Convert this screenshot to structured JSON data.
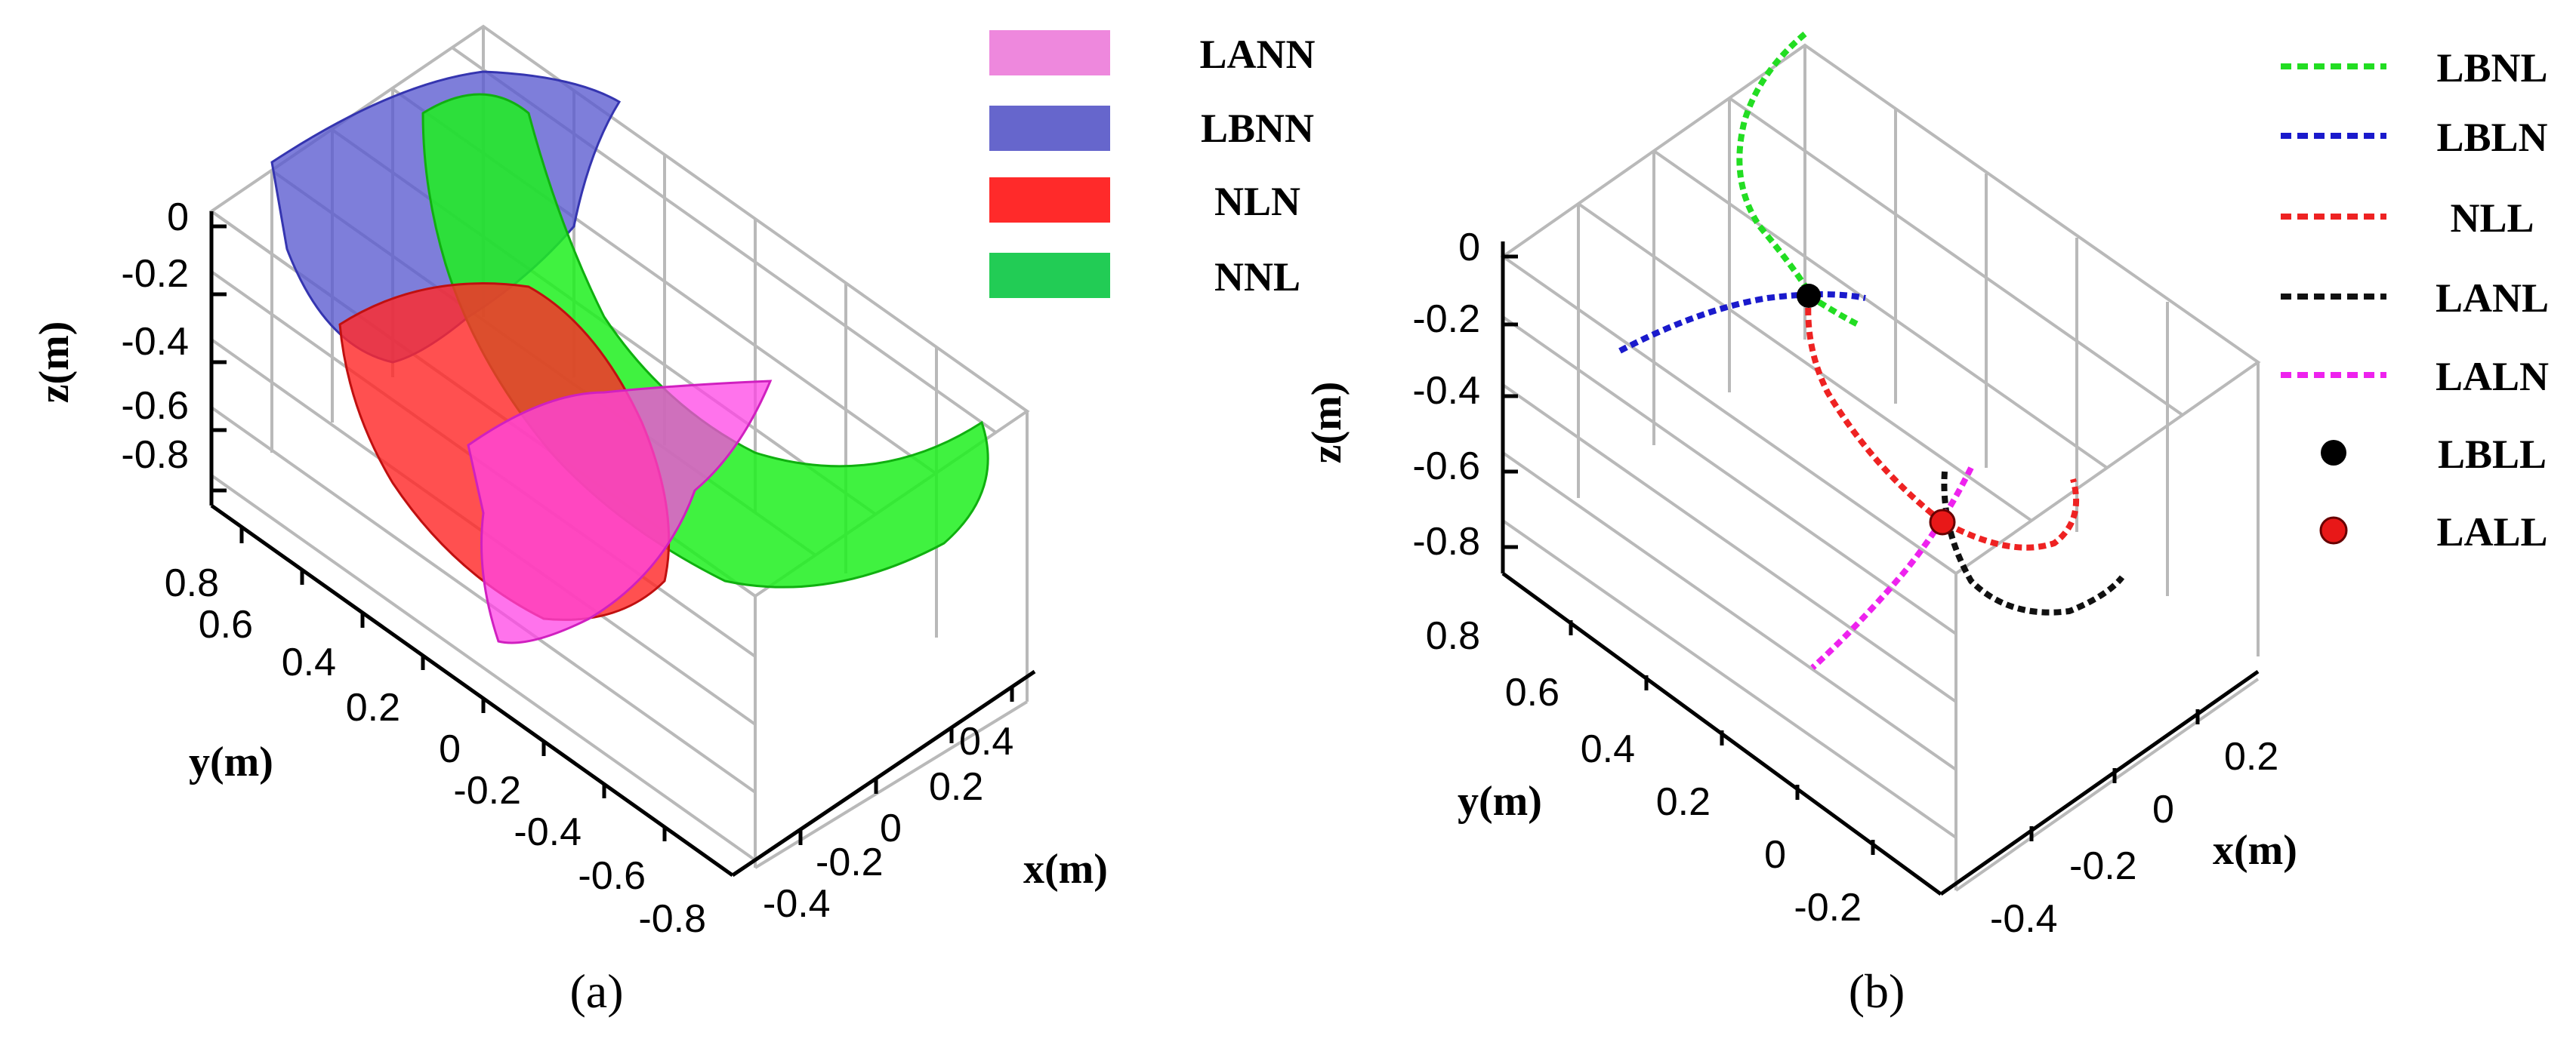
{
  "chart_data": [
    {
      "panel": "a",
      "type": "surface3d",
      "caption": "(a)",
      "xlabel": "x(m)",
      "ylabel": "y(m)",
      "zlabel": "z(m)",
      "xticks": [
        "0.4",
        "0.2",
        "0",
        "-0.2",
        "-0.4"
      ],
      "yticks": [
        "0.8",
        "0.6",
        "0.4",
        "0.2",
        "0",
        "-0.2",
        "-0.4",
        "-0.6",
        "-0.8"
      ],
      "zticks": [
        "0",
        "-0.2",
        "-0.4",
        "-0.6",
        "-0.8"
      ],
      "legend_position": "top-right",
      "legend": [
        {
          "label": "LANN",
          "color": "#ee88dd"
        },
        {
          "label": "LBNN",
          "color": "#6666cc"
        },
        {
          "label": "NLN",
          "color": "#ff2a2a"
        },
        {
          "label": "NNL",
          "color": "#22cc55"
        }
      ]
    },
    {
      "panel": "b",
      "type": "line3d",
      "caption": "(b)",
      "xlabel": "x(m)",
      "ylabel": "y(m)",
      "zlabel": "z(m)",
      "xticks": [
        "0.2",
        "0",
        "-0.2",
        "-0.4"
      ],
      "yticks": [
        "0.8",
        "0.6",
        "0.4",
        "0.2",
        "0",
        "-0.2"
      ],
      "zticks": [
        "0",
        "-0.2",
        "-0.4",
        "-0.6",
        "-0.8"
      ],
      "legend_position": "top-right",
      "legend": [
        {
          "label": "LBNL",
          "color": "#22dd22",
          "style": "dashed"
        },
        {
          "label": "LBLN",
          "color": "#1a1acc",
          "style": "dashed"
        },
        {
          "label": "NLL",
          "color": "#ee2222",
          "style": "dashed"
        },
        {
          "label": "LANL",
          "color": "#111111",
          "style": "dashed"
        },
        {
          "label": "LALN",
          "color": "#ee22ee",
          "style": "dashed"
        },
        {
          "label": "LBLL",
          "color": "#000000",
          "style": "marker"
        },
        {
          "label": "LALL",
          "color": "#e81818",
          "style": "marker"
        }
      ]
    }
  ]
}
